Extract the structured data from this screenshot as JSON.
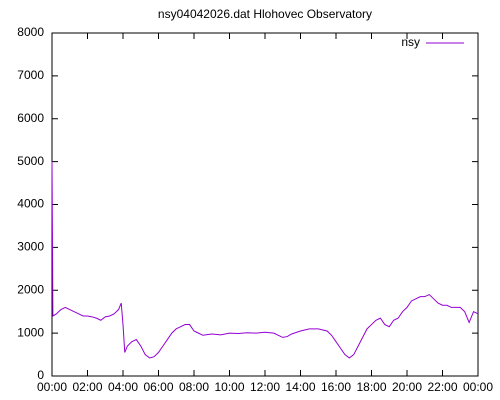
{
  "chart_data": {
    "type": "line",
    "title": "nsy04042026.dat Hlohovec Observatory",
    "x": [
      0,
      0.05,
      0.25,
      0.5,
      0.75,
      1.0,
      1.25,
      1.5,
      1.75,
      2.0,
      2.25,
      2.5,
      2.75,
      3.0,
      3.25,
      3.5,
      3.75,
      3.9,
      4.0,
      4.1,
      4.25,
      4.5,
      4.75,
      5.0,
      5.25,
      5.5,
      5.75,
      6.0,
      6.25,
      6.5,
      6.75,
      7.0,
      7.25,
      7.5,
      7.75,
      8.0,
      8.25,
      8.5,
      9.0,
      9.5,
      10.0,
      10.5,
      11.0,
      11.5,
      12.0,
      12.5,
      12.75,
      13.0,
      13.25,
      13.5,
      14.0,
      14.5,
      15.0,
      15.5,
      15.75,
      16.0,
      16.25,
      16.5,
      16.75,
      17.0,
      17.25,
      17.5,
      17.75,
      18.0,
      18.25,
      18.5,
      18.75,
      19.0,
      19.25,
      19.5,
      19.75,
      20.0,
      20.25,
      20.5,
      20.75,
      21.0,
      21.25,
      21.5,
      21.75,
      22.0,
      22.25,
      22.5,
      22.75,
      23.0,
      23.25,
      23.5,
      23.75,
      24.0
    ],
    "series": [
      {
        "name": "nsy",
        "color": "#9400d3",
        "values": [
          5000,
          1400,
          1450,
          1550,
          1600,
          1550,
          1500,
          1450,
          1400,
          1400,
          1380,
          1350,
          1300,
          1380,
          1400,
          1450,
          1550,
          1700,
          1200,
          550,
          700,
          800,
          850,
          700,
          500,
          420,
          450,
          550,
          700,
          850,
          1000,
          1100,
          1150,
          1200,
          1200,
          1050,
          1000,
          950,
          980,
          960,
          1000,
          990,
          1010,
          1000,
          1020,
          1000,
          950,
          900,
          920,
          980,
          1050,
          1100,
          1100,
          1050,
          950,
          800,
          650,
          500,
          420,
          500,
          700,
          900,
          1100,
          1200,
          1300,
          1350,
          1200,
          1150,
          1300,
          1350,
          1500,
          1600,
          1750,
          1800,
          1850,
          1850,
          1900,
          1800,
          1700,
          1650,
          1650,
          1600,
          1600,
          1600,
          1500,
          1250,
          1500,
          1450
        ]
      }
    ],
    "xlim": [
      0,
      24
    ],
    "xticks": [
      {
        "value": 0,
        "label": "00:00"
      },
      {
        "value": 2,
        "label": "02:00"
      },
      {
        "value": 4,
        "label": "04:00"
      },
      {
        "value": 6,
        "label": "06:00"
      },
      {
        "value": 8,
        "label": "08:00"
      },
      {
        "value": 10,
        "label": "10:00"
      },
      {
        "value": 12,
        "label": "12:00"
      },
      {
        "value": 14,
        "label": "14:00"
      },
      {
        "value": 16,
        "label": "16:00"
      },
      {
        "value": 18,
        "label": "18:00"
      },
      {
        "value": 20,
        "label": "20:00"
      },
      {
        "value": 22,
        "label": "22:00"
      },
      {
        "value": 24,
        "label": "00:00"
      }
    ],
    "ylim": [
      0,
      8000
    ],
    "yticks": [
      0,
      1000,
      2000,
      3000,
      4000,
      5000,
      6000,
      7000,
      8000
    ],
    "grid": false,
    "legend": "top-right"
  }
}
